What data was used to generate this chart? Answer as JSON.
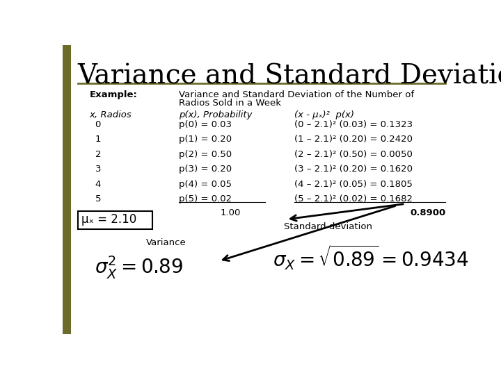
{
  "title": "Variance and Standard Deviation",
  "background_color": "#ffffff",
  "left_bar_color": "#6b6b2a",
  "example_label": "Example:",
  "example_desc_line1": "Variance and Standard Deviation of the Number of",
  "example_desc_line2": "Radios Sold in a Week",
  "col1_header": "x, Radios",
  "col2_header": "p(x), Probability",
  "col3_header": "(x - μₓ)²  p(x)",
  "col1_values": [
    "0",
    "1",
    "2",
    "3",
    "4",
    "5"
  ],
  "col2_values": [
    "p(0) = 0.03",
    "p(1) = 0.20",
    "p(2) = 0.50",
    "p(3) = 0.20",
    "p(4) = 0.05",
    "p(5) = 0.02"
  ],
  "col3_values": [
    "(0 – 2.1)² (0.03) = 0.1323",
    "(1 – 2.1)² (0.20) = 0.2420",
    "(2 – 2.1)² (0.50) = 0.0050",
    "(3 – 2.1)² (0.20) = 0.1620",
    "(4 – 2.1)² (0.05) = 0.1805",
    "(5 – 2.1)² (0.02) = 0.1682"
  ],
  "col2_total": "1.00",
  "col3_total": "0.8900",
  "mu_label": "μₓ = 2.10",
  "variance_label": "Variance",
  "std_dev_label": "Standard deviation"
}
